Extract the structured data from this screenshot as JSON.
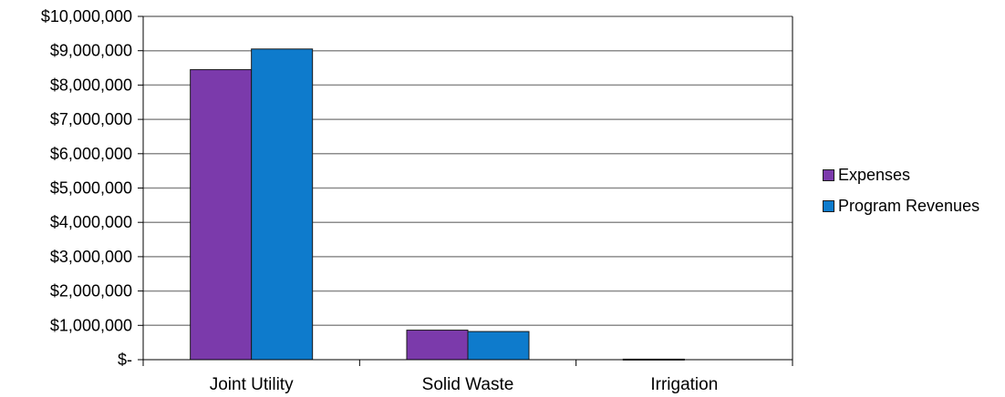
{
  "chart_data": {
    "type": "bar",
    "categories": [
      "Joint Utility",
      "Solid Waste",
      "Irrigation"
    ],
    "series": [
      {
        "name": "Expenses",
        "color": "#7b3aab",
        "values": [
          8450000,
          860000,
          15000
        ]
      },
      {
        "name": "Program Revenues",
        "color": "#0e7bcc",
        "values": [
          9050000,
          820000,
          0
        ]
      }
    ],
    "ylim": [
      0,
      10000000
    ],
    "y_ticks": [
      0,
      1000000,
      2000000,
      3000000,
      4000000,
      5000000,
      6000000,
      7000000,
      8000000,
      9000000,
      10000000
    ],
    "y_tick_labels": [
      "$-",
      "$1,000,000",
      "$2,000,000",
      "$3,000,000",
      "$4,000,000",
      "$5,000,000",
      "$6,000,000",
      "$7,000,000",
      "$8,000,000",
      "$9,000,000",
      "$10,000,000"
    ],
    "grid": true,
    "legend_position": "right"
  }
}
